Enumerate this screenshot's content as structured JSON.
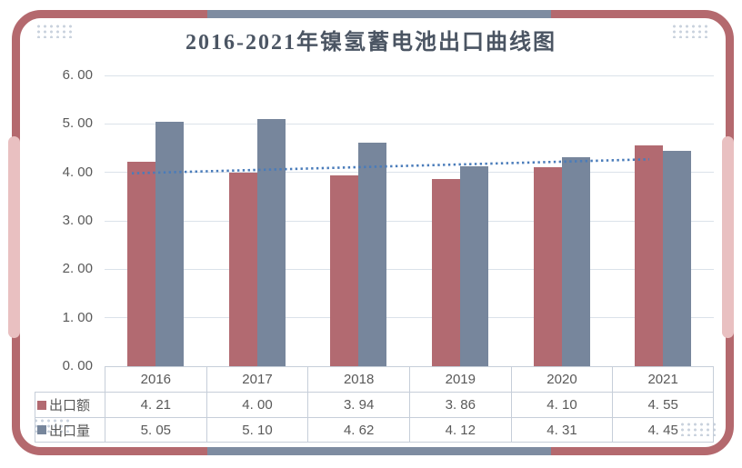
{
  "theme": {
    "border_color": "#b4696e",
    "accent_color": "#7e8ca1",
    "pill_color": "#e9c0c1",
    "corner_dots_color": "#c9d2dd",
    "title_text_color": "#4b5563",
    "axis_text_color": "#595959",
    "grid_line_color": "#dbe2ea",
    "table_border_color": "#c6ced9",
    "card_bg": "#ffffff"
  },
  "chart_data": {
    "type": "bar",
    "title": "2016-2021年镍氢蓄电池出口曲线图",
    "categories": [
      "2016",
      "2017",
      "2018",
      "2019",
      "2020",
      "2021"
    ],
    "series": [
      {
        "name": "出口额",
        "key": "export-value",
        "color": "#b26a71",
        "values": [
          4.21,
          4.0,
          3.94,
          3.86,
          4.1,
          4.55
        ]
      },
      {
        "name": "出口量",
        "key": "export-volume",
        "color": "#77869c",
        "values": [
          5.05,
          5.1,
          4.62,
          4.12,
          4.31,
          4.45
        ]
      }
    ],
    "trendline": {
      "series": "出口额",
      "style": "dotted",
      "color": "#4a7cba",
      "start_value": 3.98,
      "end_value": 4.27
    },
    "ylim": [
      0,
      6
    ],
    "ytick_step": 1,
    "y_ticks": [
      "0.00",
      "1.00",
      "2.00",
      "3.00",
      "4.00",
      "5.00",
      "6.00"
    ],
    "grid": true,
    "legend_position": "table-left",
    "data_table": true
  }
}
